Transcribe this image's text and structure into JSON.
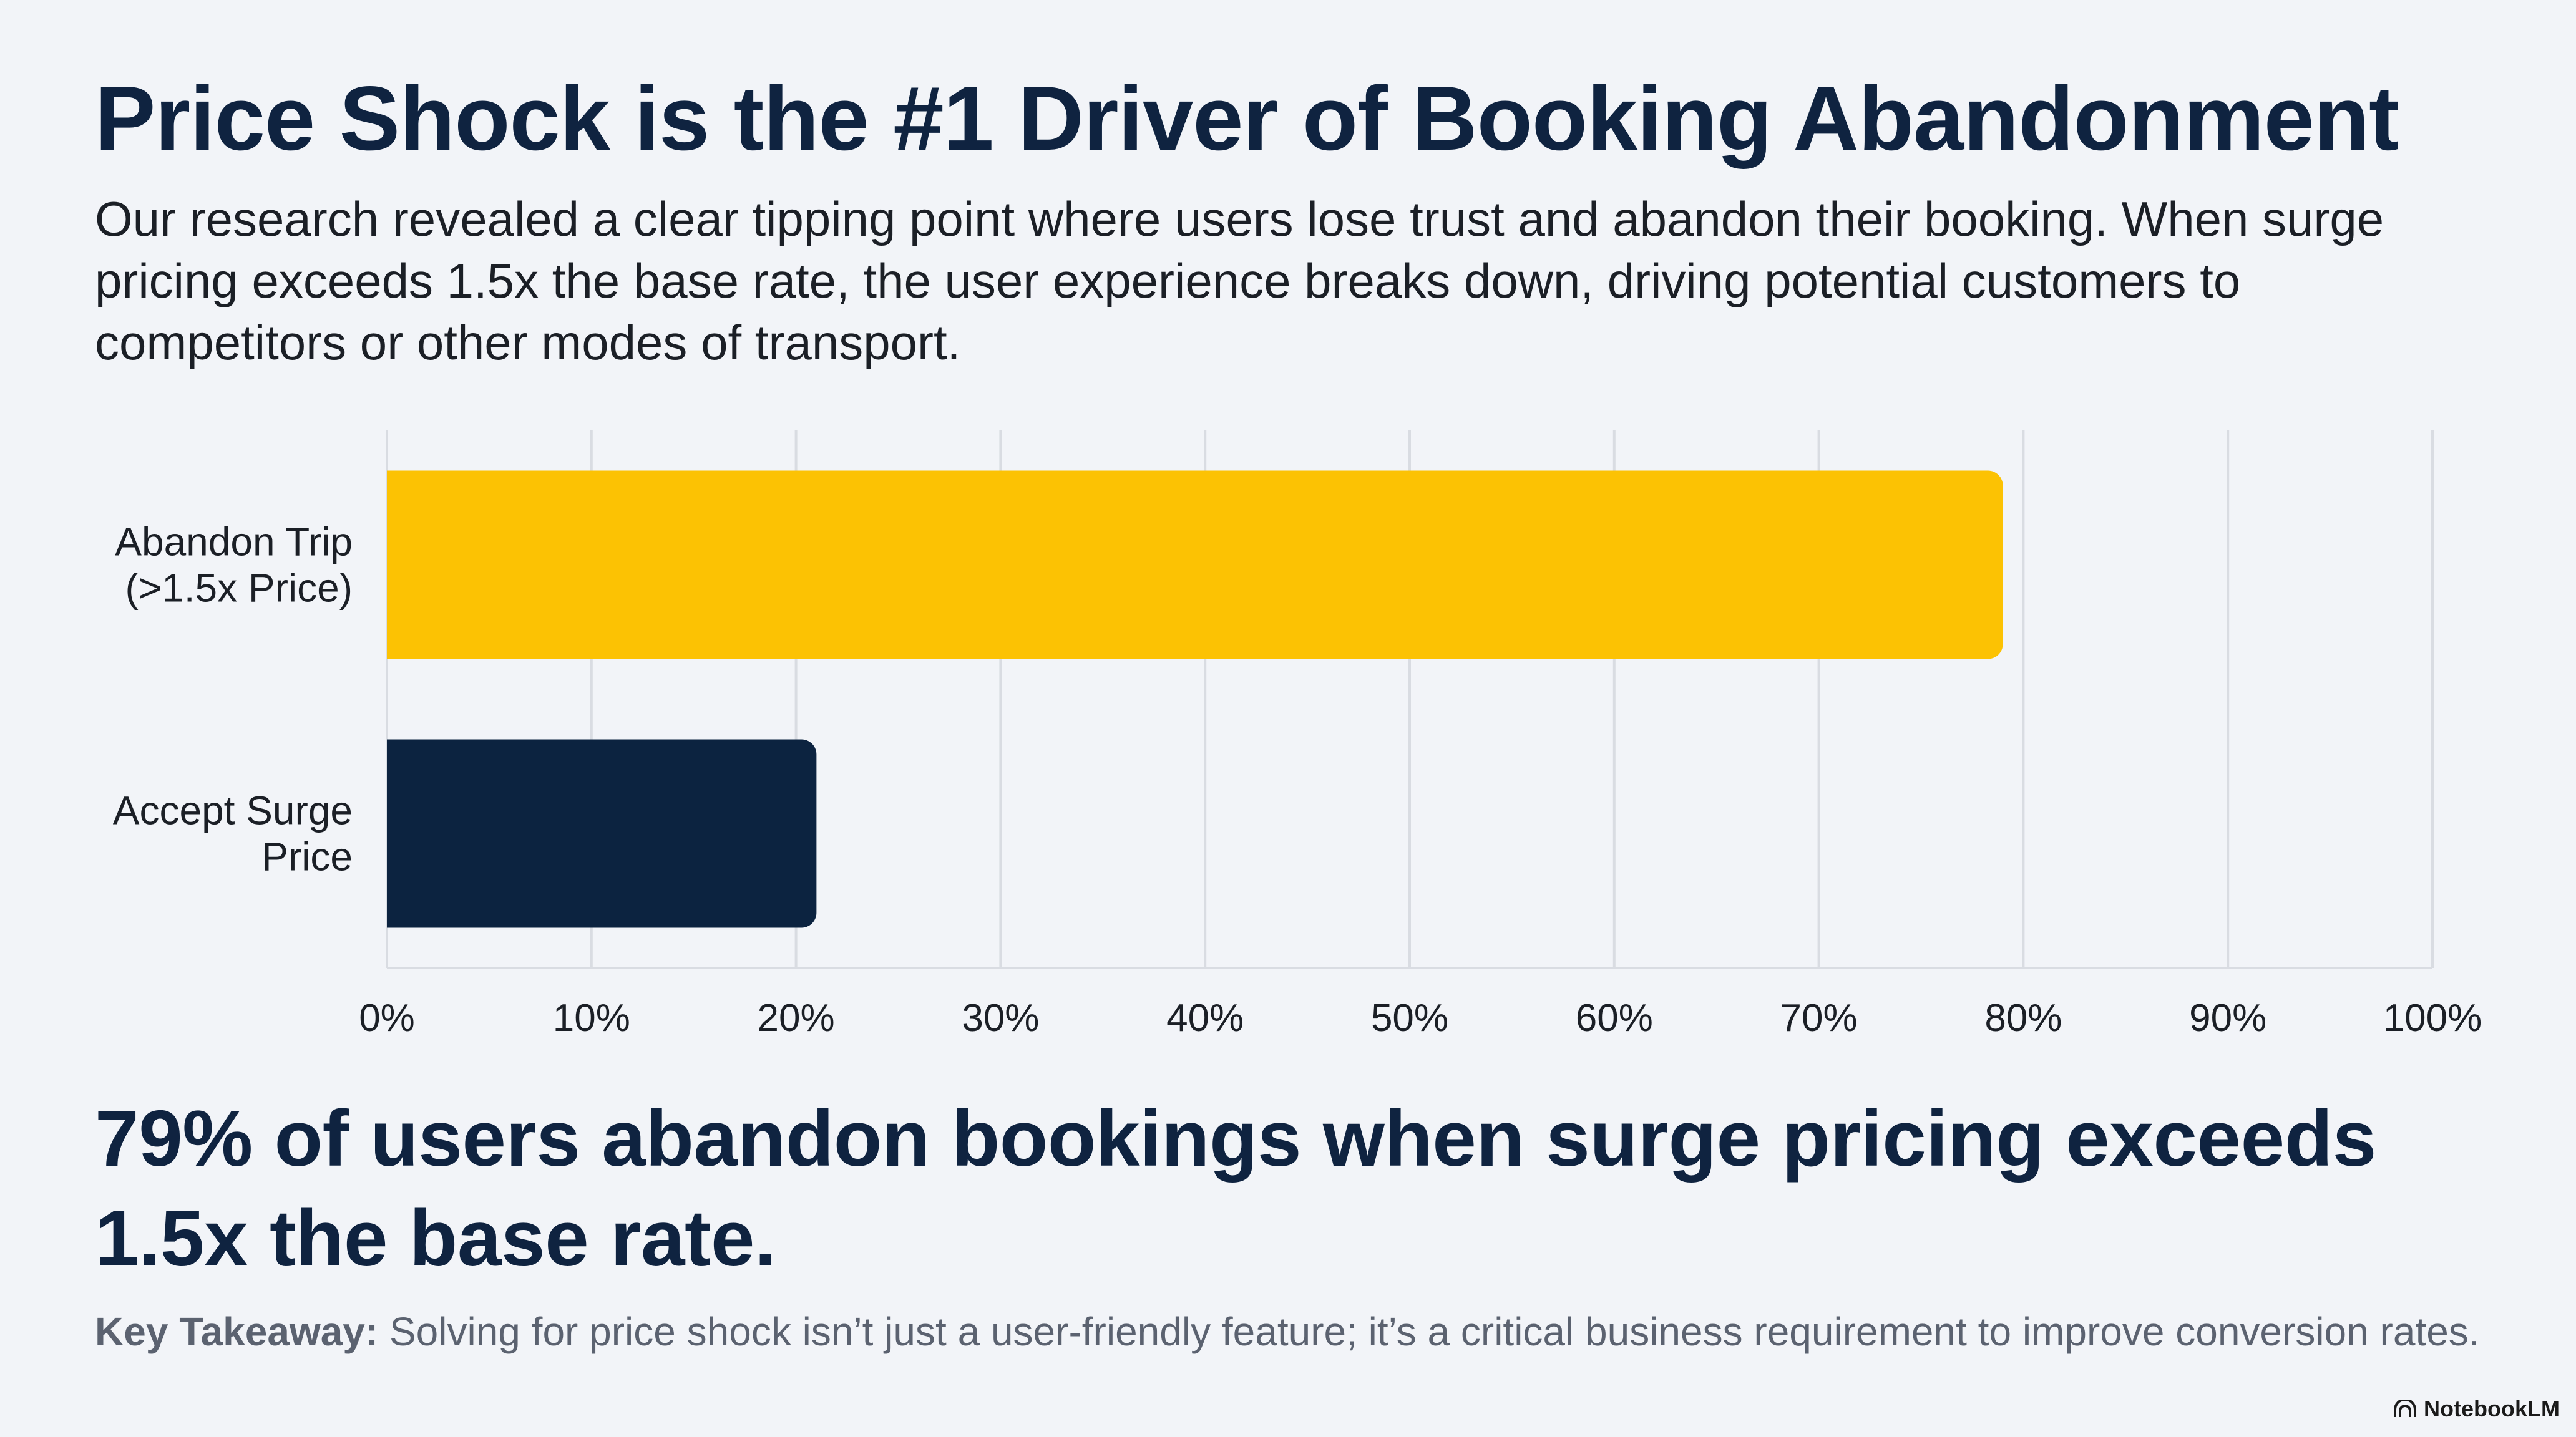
{
  "title": "Price Shock is the #1 Driver of Booking Abandonment",
  "intro": "Our research revealed a clear tipping point where users lose trust and abandon their booking. When surge pricing exceeds 1.5x the base rate, the user experience breaks down, driving potential customers to competitors or other modes of transport.",
  "chart_data": {
    "type": "bar",
    "orientation": "horizontal",
    "categories": [
      [
        "Abandon Trip",
        "(>1.5x Price)"
      ],
      [
        "Accept Surge",
        "Price"
      ]
    ],
    "values": [
      79,
      21
    ],
    "bar_colors": [
      "#fcc203",
      "#0c2340"
    ],
    "xlim": [
      0,
      100
    ],
    "x_ticks": [
      0,
      10,
      20,
      30,
      40,
      50,
      60,
      70,
      80,
      90,
      100
    ],
    "x_tick_labels": [
      "0%",
      "10%",
      "20%",
      "30%",
      "40%",
      "50%",
      "60%",
      "70%",
      "80%",
      "90%",
      "100%"
    ],
    "grid": "vertical",
    "legend": "none"
  },
  "headline": "79% of users abandon bookings when surge pricing exceeds 1.5x the base rate.",
  "takeaway": {
    "label": "Key Takeaway:",
    "text": " Solving for price shock isn’t just a user-friendly feature; it’s a critical business requirement to improve conversion rates."
  },
  "brand": {
    "name": "NotebookLM",
    "icon": "notebooklm-logo-icon"
  },
  "colors": {
    "background": "#f2f4f8",
    "title": "#0f2340",
    "grid": "#d9dce2",
    "takeaway": "#5b6270"
  }
}
